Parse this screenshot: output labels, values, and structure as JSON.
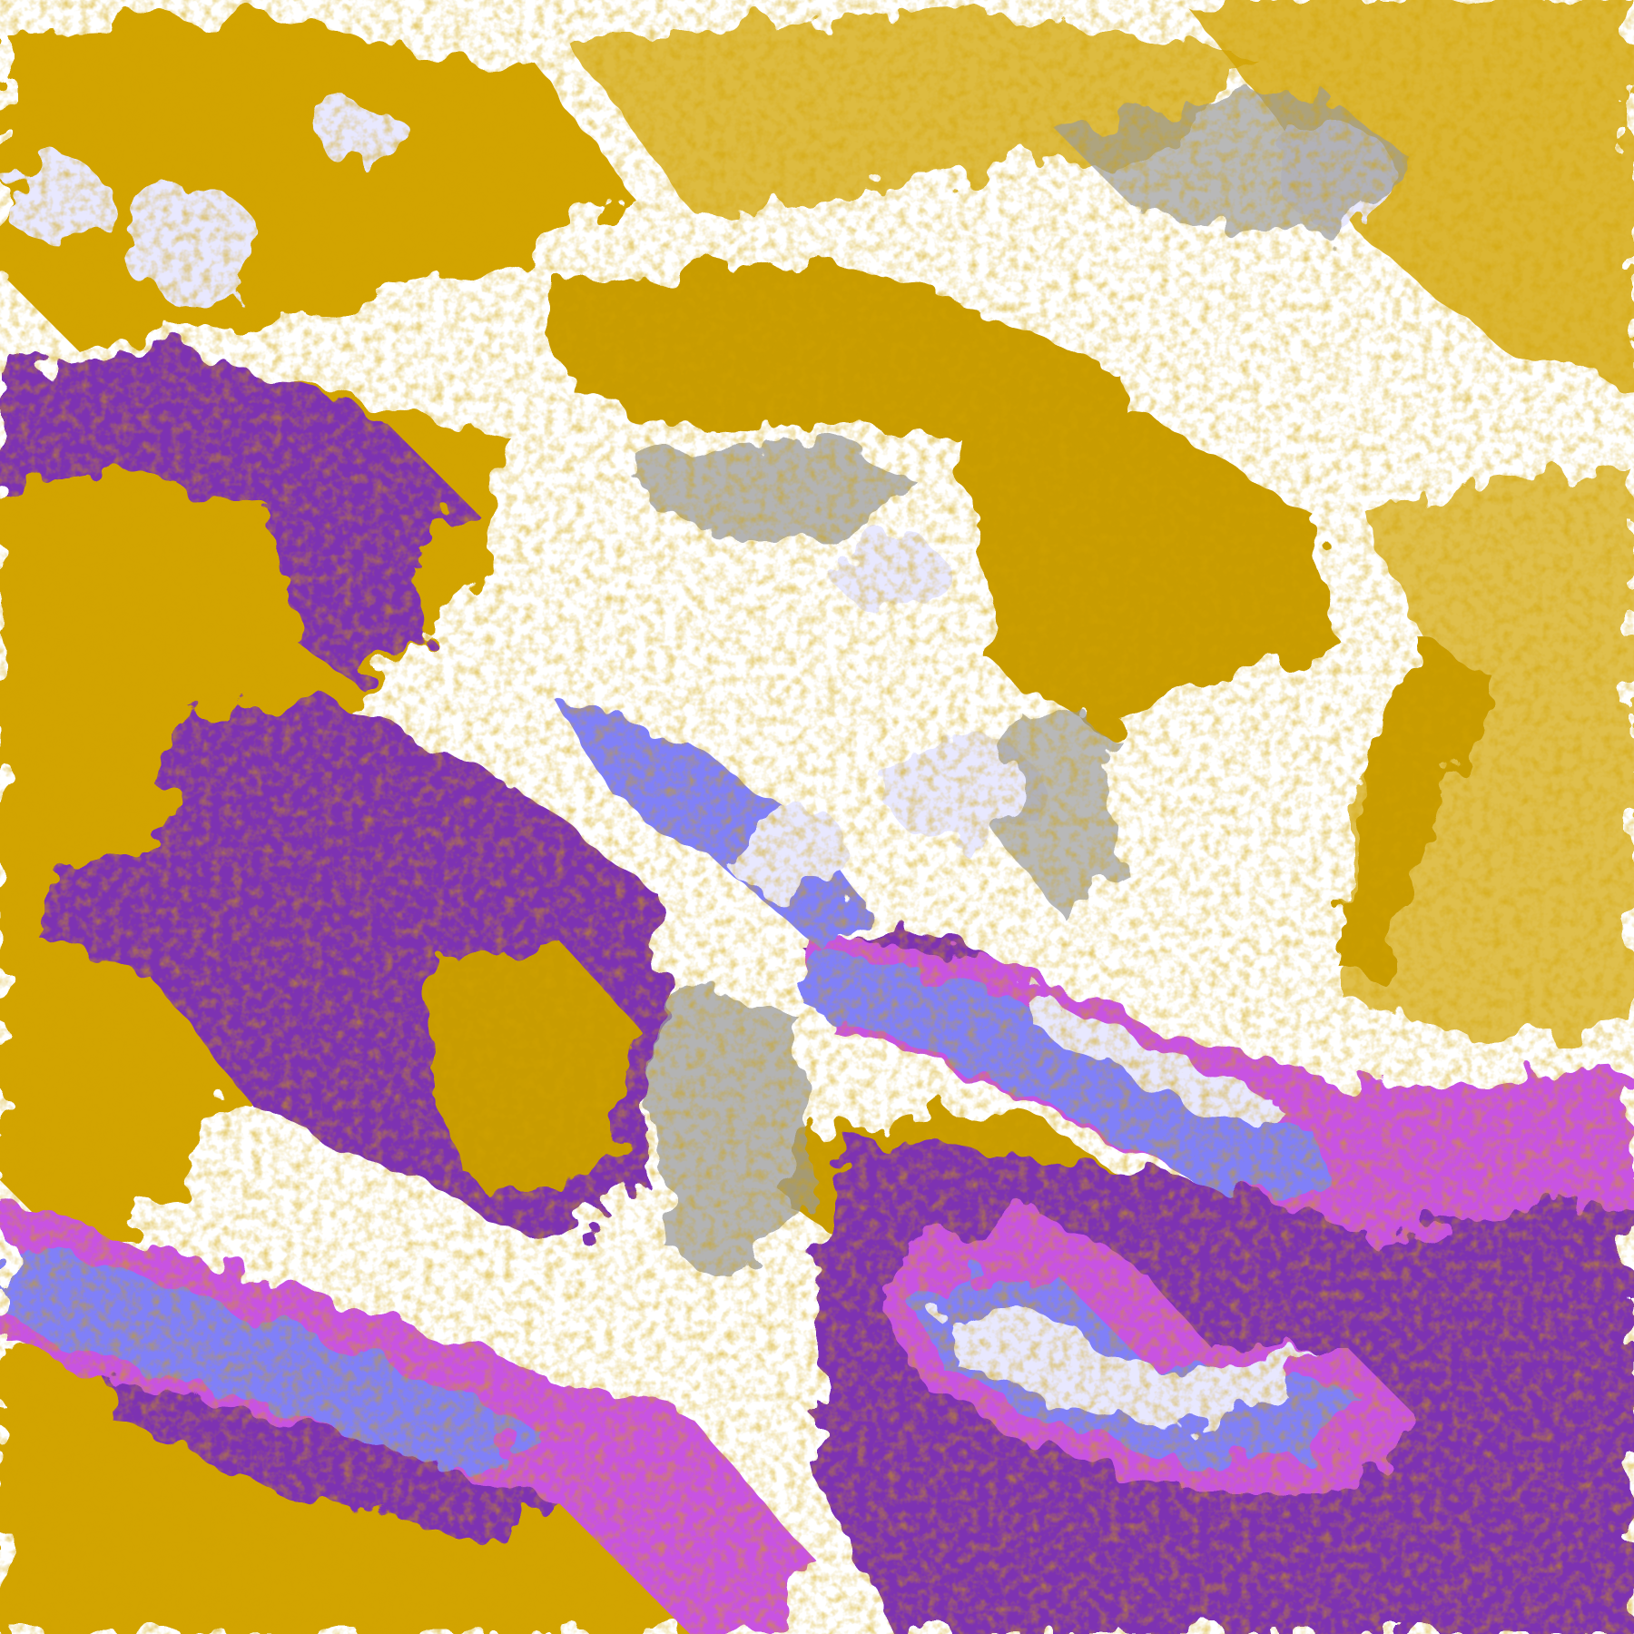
{
  "image": {
    "palette": {
      "clear": "#ffffff",
      "low_cloud": "#d2a400",
      "low_cloud_dark": "#b88c00",
      "ocean_warm": "#7d32b2",
      "mid_cloud": "#c852e2",
      "high_cloud": "#8080f8",
      "very_high_cloud": "#e8e8ff",
      "gray_cloud": "#9a9a9a"
    }
  }
}
